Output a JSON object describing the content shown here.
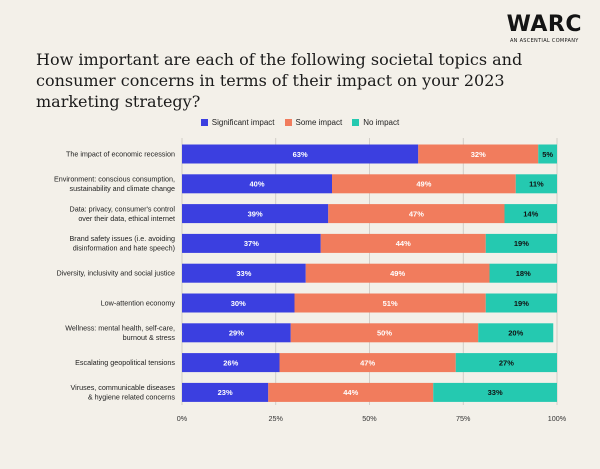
{
  "brand": {
    "logo_text": "WARC",
    "logo_subtext": "AN ASCENTIAL COMPANY"
  },
  "chart_data": {
    "type": "bar",
    "orientation": "horizontal",
    "stacked": true,
    "title": "How important are each of the following societal topics and consumer concerns in terms of their impact on your 2023 marketing strategy?",
    "legend_position": "top-center",
    "grid": true,
    "xlim": [
      0,
      100
    ],
    "x_ticks": [
      "0%",
      "25%",
      "50%",
      "75%",
      "100%"
    ],
    "x_tick_values": [
      0,
      25,
      50,
      75,
      100
    ],
    "categories": [
      [
        "The impact of economic recession"
      ],
      [
        "Environment: conscious consumption,",
        "sustainability and climate change"
      ],
      [
        "Data: privacy, consumer's control",
        "over their data, ethical internet"
      ],
      [
        "Brand safety issues (i.e. avoiding",
        "disinformation and hate speech)"
      ],
      [
        "Diversity, inclusivity and social justice"
      ],
      [
        "Low-attention economy"
      ],
      [
        "Wellness: mental health, self-care,",
        "burnout & stress"
      ],
      [
        "Escalating geopolitical tensions"
      ],
      [
        "Viruses, communicable diseases",
        "& hygiene related concerns"
      ]
    ],
    "series": [
      {
        "name": "Significant impact",
        "color": "#3b3fe0",
        "label_color": "#ffffff",
        "values": [
          63,
          40,
          39,
          37,
          33,
          30,
          29,
          26,
          23
        ]
      },
      {
        "name": "Some impact",
        "color": "#f17c5d",
        "label_color": "#ffffff",
        "values": [
          32,
          49,
          47,
          44,
          49,
          51,
          50,
          47,
          44
        ]
      },
      {
        "name": "No impact",
        "color": "#25c9b0",
        "label_color": "#111111",
        "values": [
          5,
          11,
          14,
          19,
          18,
          19,
          20,
          27,
          33
        ]
      }
    ]
  }
}
